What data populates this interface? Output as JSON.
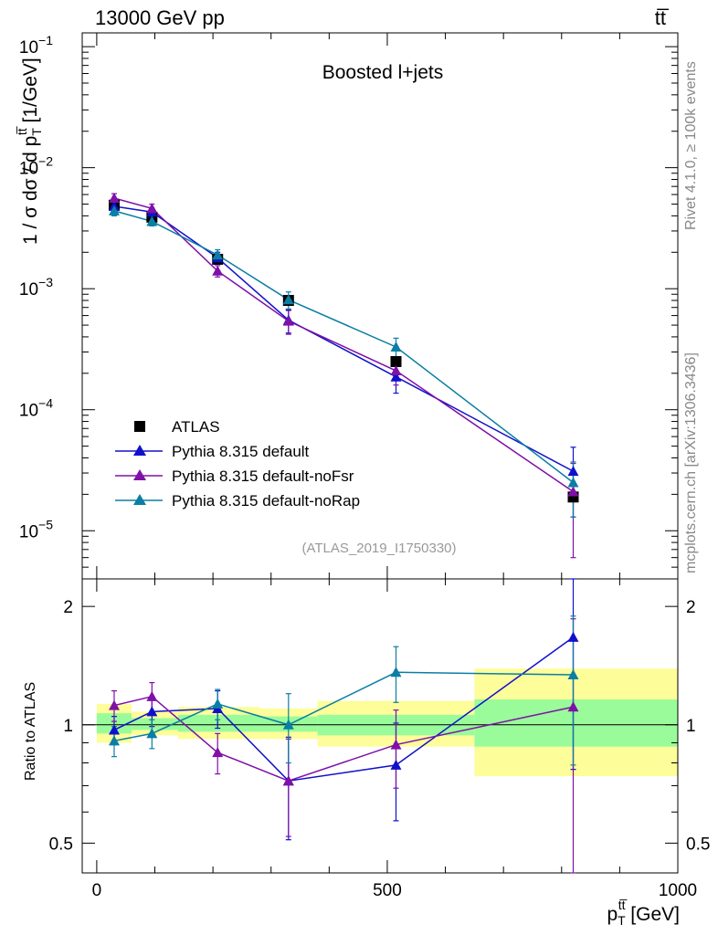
{
  "header": {
    "energy_label": "13000 GeV pp",
    "process_label": "tt̅",
    "plot_title": "Boosted l+jets"
  },
  "side_labels": {
    "rivet": "Rivet 4.1.0, ≥ 100k events",
    "mcplots": "mcplots.cern.ch [arXiv:1306.3436]"
  },
  "analysis_ref": "(ATLAS_2019_I1750330)",
  "legend": {
    "atlas": "ATLAS",
    "default": "Pythia 8.315 default",
    "nofsr": "Pythia 8.315 default-noFsr",
    "norap": "Pythia 8.315 default-noRap"
  },
  "axis_labels": {
    "main_y": "1 / σ dσ / d p",
    "main_y_sup": "tt̅",
    "main_y_sub": "T",
    "main_y_unit": " [1/GeV]",
    "ratio_y": "Ratio to ATLAS",
    "x": "p",
    "x_sup": "tt̅",
    "x_sub": "T",
    "x_unit": " [GeV]"
  },
  "colors": {
    "default": "#1010cc",
    "nofsr": "#7f10a8",
    "norap": "#0a7ea4",
    "band_inner": "#9afb9a",
    "band_outer": "#fdfd9a",
    "data": "#000000"
  },
  "chart_data": [
    {
      "type": "line",
      "title": "Boosted l+jets",
      "xlabel": "p_T^{tt̅} [GeV]",
      "ylabel": "1 / σ dσ / d p_T^{tt̅} [1/GeV]",
      "xlim": [
        -25,
        1000
      ],
      "ylim": [
        4e-06,
        0.13
      ],
      "yscale": "log",
      "x_ticks": [
        0,
        500,
        1000
      ],
      "y_ticks": [
        1e-05,
        0.0001,
        0.001,
        0.01,
        0.1
      ],
      "y_tick_labels": [
        {
          "base": "10",
          "exp": "−5"
        },
        {
          "base": "10",
          "exp": "−4"
        },
        {
          "base": "10",
          "exp": "−3"
        },
        {
          "base": "10",
          "exp": "−2"
        },
        {
          "base": "10",
          "exp": "−1"
        }
      ],
      "legend_position": "bottom-left",
      "data": {
        "name": "ATLAS",
        "bins": [
          [
            0,
            60
          ],
          [
            60,
            140
          ],
          [
            140,
            280
          ],
          [
            280,
            380
          ],
          [
            380,
            650
          ],
          [
            650,
            1000
          ]
        ],
        "x": [
          30,
          95,
          208,
          330,
          515,
          820
        ],
        "y": [
          0.0049,
          0.0039,
          0.00175,
          0.0008,
          0.00025,
          1.9e-05
        ]
      },
      "series": [
        {
          "name": "Pythia 8.315 default",
          "color_key": "default",
          "x": [
            30,
            95,
            208,
            330,
            515,
            820
          ],
          "y": [
            0.0048,
            0.0043,
            0.0018,
            0.00055,
            0.000187,
            3.1e-05
          ],
          "err_low": [
            0.0004,
            0.0003,
            0.0002,
            0.00012,
            5e-05,
            1.8e-05
          ],
          "err_high": [
            0.0004,
            0.0003,
            0.0002,
            0.00012,
            5e-05,
            1.8e-05
          ]
        },
        {
          "name": "Pythia 8.315 default-noFsr",
          "color_key": "nofsr",
          "x": [
            30,
            95,
            208,
            330,
            515,
            820
          ],
          "y": [
            0.0056,
            0.0046,
            0.0014,
            0.00054,
            0.00021,
            2.1e-05
          ],
          "err_low": [
            0.0005,
            0.0004,
            0.00015,
            0.00012,
            5e-05,
            1.5e-05
          ],
          "err_high": [
            0.0005,
            0.0004,
            0.00015,
            0.00012,
            5e-05,
            1.5e-05
          ]
        },
        {
          "name": "Pythia 8.315 default-noRap",
          "color_key": "norap",
          "x": [
            30,
            95,
            208,
            330,
            515,
            820
          ],
          "y": [
            0.0044,
            0.0036,
            0.0019,
            0.00081,
            0.00033,
            2.5e-05
          ],
          "err_low": [
            0.0004,
            0.0003,
            0.0002,
            0.00013,
            6e-05,
            1.2e-05
          ],
          "err_high": [
            0.0004,
            0.0003,
            0.0002,
            0.00013,
            6e-05,
            1.2e-05
          ]
        }
      ]
    },
    {
      "type": "line",
      "title": "",
      "xlabel": "p_T^{tt̅} [GeV]",
      "ylabel": "Ratio to ATLAS",
      "xlim": [
        -25,
        1000
      ],
      "ylim": [
        0.42,
        2.35
      ],
      "yscale": "log",
      "x_ticks": [
        0,
        500,
        1000
      ],
      "x_tick_labels": [
        "0",
        "500",
        "1000"
      ],
      "y_ticks": [
        0.5,
        1,
        2
      ],
      "y_tick_labels": [
        "0.5",
        "1",
        "2"
      ],
      "reference_line": 1,
      "bands": [
        {
          "x": [
            0,
            60
          ],
          "inner": [
            0.95,
            1.07
          ],
          "outer": [
            0.9,
            1.13
          ]
        },
        {
          "x": [
            60,
            140
          ],
          "inner": [
            0.97,
            1.04
          ],
          "outer": [
            0.94,
            1.08
          ]
        },
        {
          "x": [
            140,
            280
          ],
          "inner": [
            0.96,
            1.06
          ],
          "outer": [
            0.92,
            1.11
          ]
        },
        {
          "x": [
            280,
            380
          ],
          "inner": [
            0.96,
            1.05
          ],
          "outer": [
            0.92,
            1.1
          ]
        },
        {
          "x": [
            380,
            650
          ],
          "inner": [
            0.94,
            1.06
          ],
          "outer": [
            0.88,
            1.15
          ]
        },
        {
          "x": [
            650,
            1000
          ],
          "inner": [
            0.88,
            1.16
          ],
          "outer": [
            0.74,
            1.39
          ]
        }
      ],
      "series": [
        {
          "name": "Pythia 8.315 default",
          "color_key": "default",
          "x": [
            30,
            95,
            208,
            330,
            515,
            820
          ],
          "y": [
            0.97,
            1.08,
            1.1,
            0.72,
            0.79,
            1.67
          ],
          "err_low": [
            0.08,
            0.09,
            0.12,
            0.21,
            0.22,
            0.9
          ],
          "err_high": [
            0.08,
            0.09,
            0.12,
            0.21,
            0.22,
            0.9
          ]
        },
        {
          "name": "Pythia 8.315 default-noFsr",
          "color_key": "nofsr",
          "x": [
            30,
            95,
            208,
            330,
            515,
            820
          ],
          "y": [
            1.12,
            1.18,
            0.85,
            0.72,
            0.89,
            1.11
          ],
          "err_low": [
            0.1,
            0.1,
            0.1,
            0.2,
            0.2,
            0.75
          ],
          "err_high": [
            0.1,
            0.1,
            0.1,
            0.2,
            0.2,
            0.75
          ]
        },
        {
          "name": "Pythia 8.315 default-noRap",
          "color_key": "norap",
          "x": [
            30,
            95,
            208,
            330,
            515,
            820
          ],
          "y": [
            0.91,
            0.95,
            1.13,
            1.0,
            1.36,
            1.34
          ],
          "err_low": [
            0.08,
            0.08,
            0.1,
            0.2,
            0.22,
            0.55
          ],
          "err_high": [
            0.08,
            0.08,
            0.1,
            0.2,
            0.22,
            0.55
          ]
        }
      ]
    }
  ]
}
